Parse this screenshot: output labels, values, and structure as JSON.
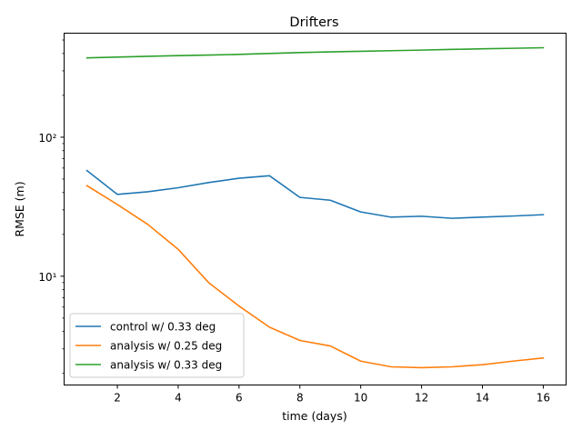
{
  "chart_data": {
    "type": "line",
    "title": "Drifters",
    "xlabel": "time (days)",
    "ylabel": "RMSE (m)",
    "yscale": "log",
    "xlim": [
      0.25,
      16.75
    ],
    "ylim": [
      1.65,
      560
    ],
    "xticks": [
      2,
      4,
      6,
      8,
      10,
      12,
      14,
      16
    ],
    "xtick_labels": [
      "2",
      "4",
      "6",
      "8",
      "10",
      "12",
      "14",
      "16"
    ],
    "yticks_major": [
      10,
      100
    ],
    "ytick_labels": [
      "10¹",
      "10²"
    ],
    "legend_position": "lower-left",
    "x": [
      1,
      2,
      3,
      4,
      5,
      6,
      7,
      8,
      9,
      10,
      11,
      12,
      13,
      14,
      15,
      16
    ],
    "series": [
      {
        "name": "control w/ 0.33 deg",
        "color": "#1f77b4",
        "values": [
          57.5,
          38.8,
          40.5,
          43.3,
          47.2,
          50.7,
          52.8,
          36.9,
          35.2,
          29.0,
          26.6,
          27.0,
          26.1,
          26.6,
          27.1,
          27.7
        ]
      },
      {
        "name": "analysis w/ 0.25 deg",
        "color": "#ff7f0e",
        "values": [
          44.8,
          32.8,
          23.6,
          15.6,
          9.0,
          6.1,
          4.3,
          3.45,
          3.15,
          2.45,
          2.23,
          2.2,
          2.23,
          2.31,
          2.45,
          2.58
        ]
      },
      {
        "name": "analysis w/ 0.33 deg",
        "color": "#2ca02c",
        "values": [
          372,
          377,
          382,
          386,
          390,
          394,
          400,
          406,
          411,
          415,
          419,
          423,
          428,
          432,
          436,
          440
        ]
      }
    ]
  }
}
